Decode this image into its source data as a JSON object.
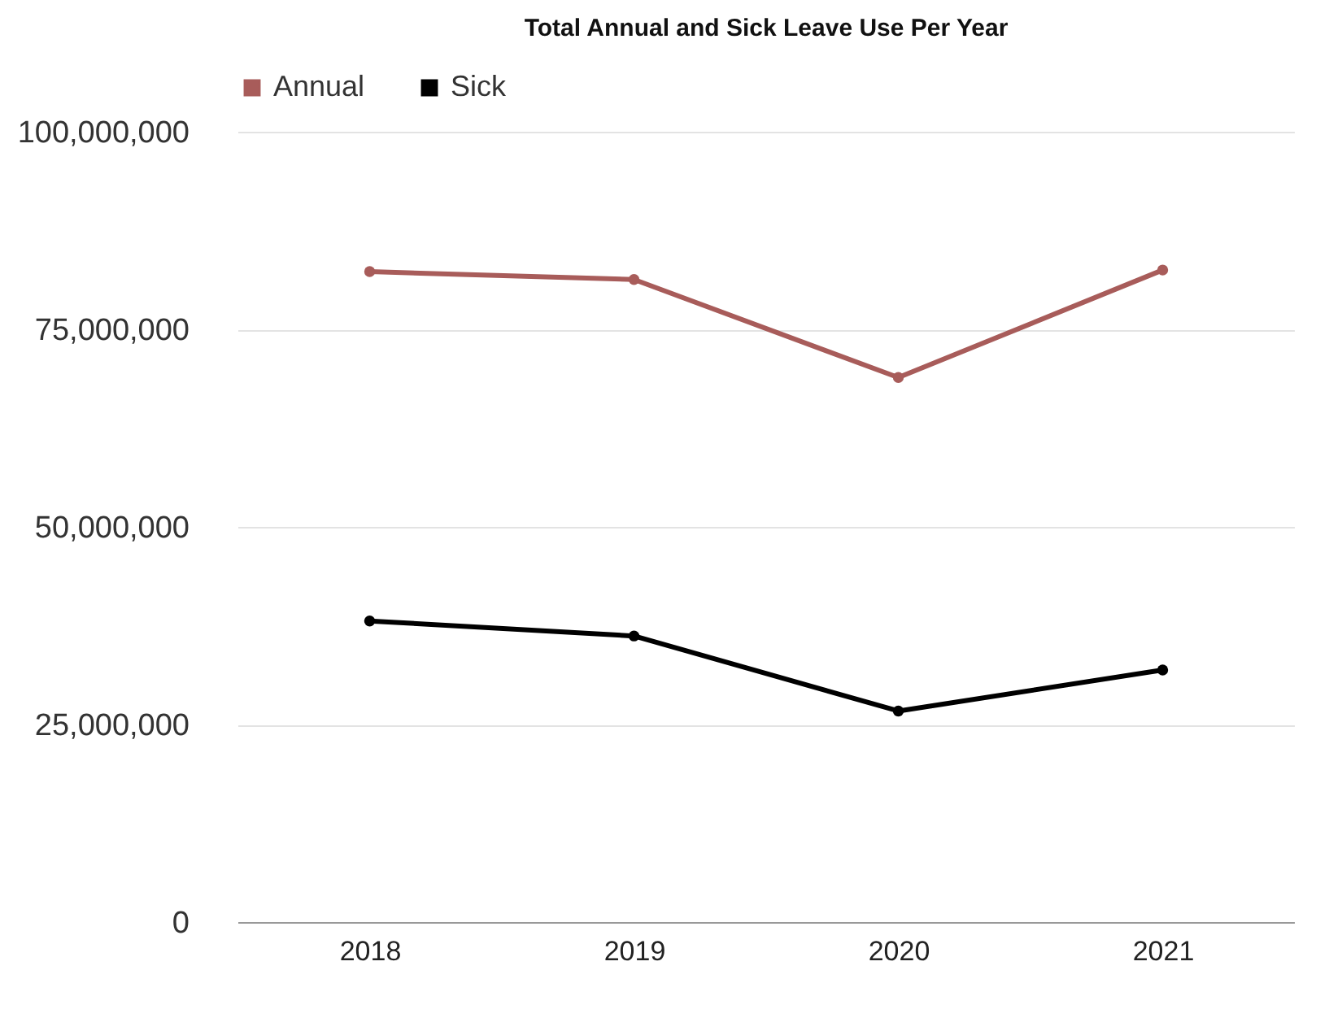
{
  "chart_data": {
    "type": "line",
    "title": "Total Annual and Sick Leave Use Per Year",
    "categories": [
      "2018",
      "2019",
      "2020",
      "2021"
    ],
    "series": [
      {
        "name": "Annual",
        "color": "#a85c5a",
        "values": [
          82300000,
          81300000,
          68900000,
          82500000
        ]
      },
      {
        "name": "Sick",
        "color": "#000000",
        "values": [
          38100000,
          36200000,
          26700000,
          31900000
        ]
      }
    ],
    "ylim": [
      0,
      100000000
    ],
    "yticks": [
      0,
      {
        "value": 25000000,
        "label": "25,000,000"
      },
      {
        "value": 50000000,
        "label": "50,000,000"
      },
      {
        "value": 75000000,
        "label": "75,000,000"
      },
      {
        "value": 100000000,
        "label": "100,000,000"
      }
    ],
    "grid": "y",
    "legend": "top",
    "marker": "circle",
    "line_style": "solid"
  }
}
